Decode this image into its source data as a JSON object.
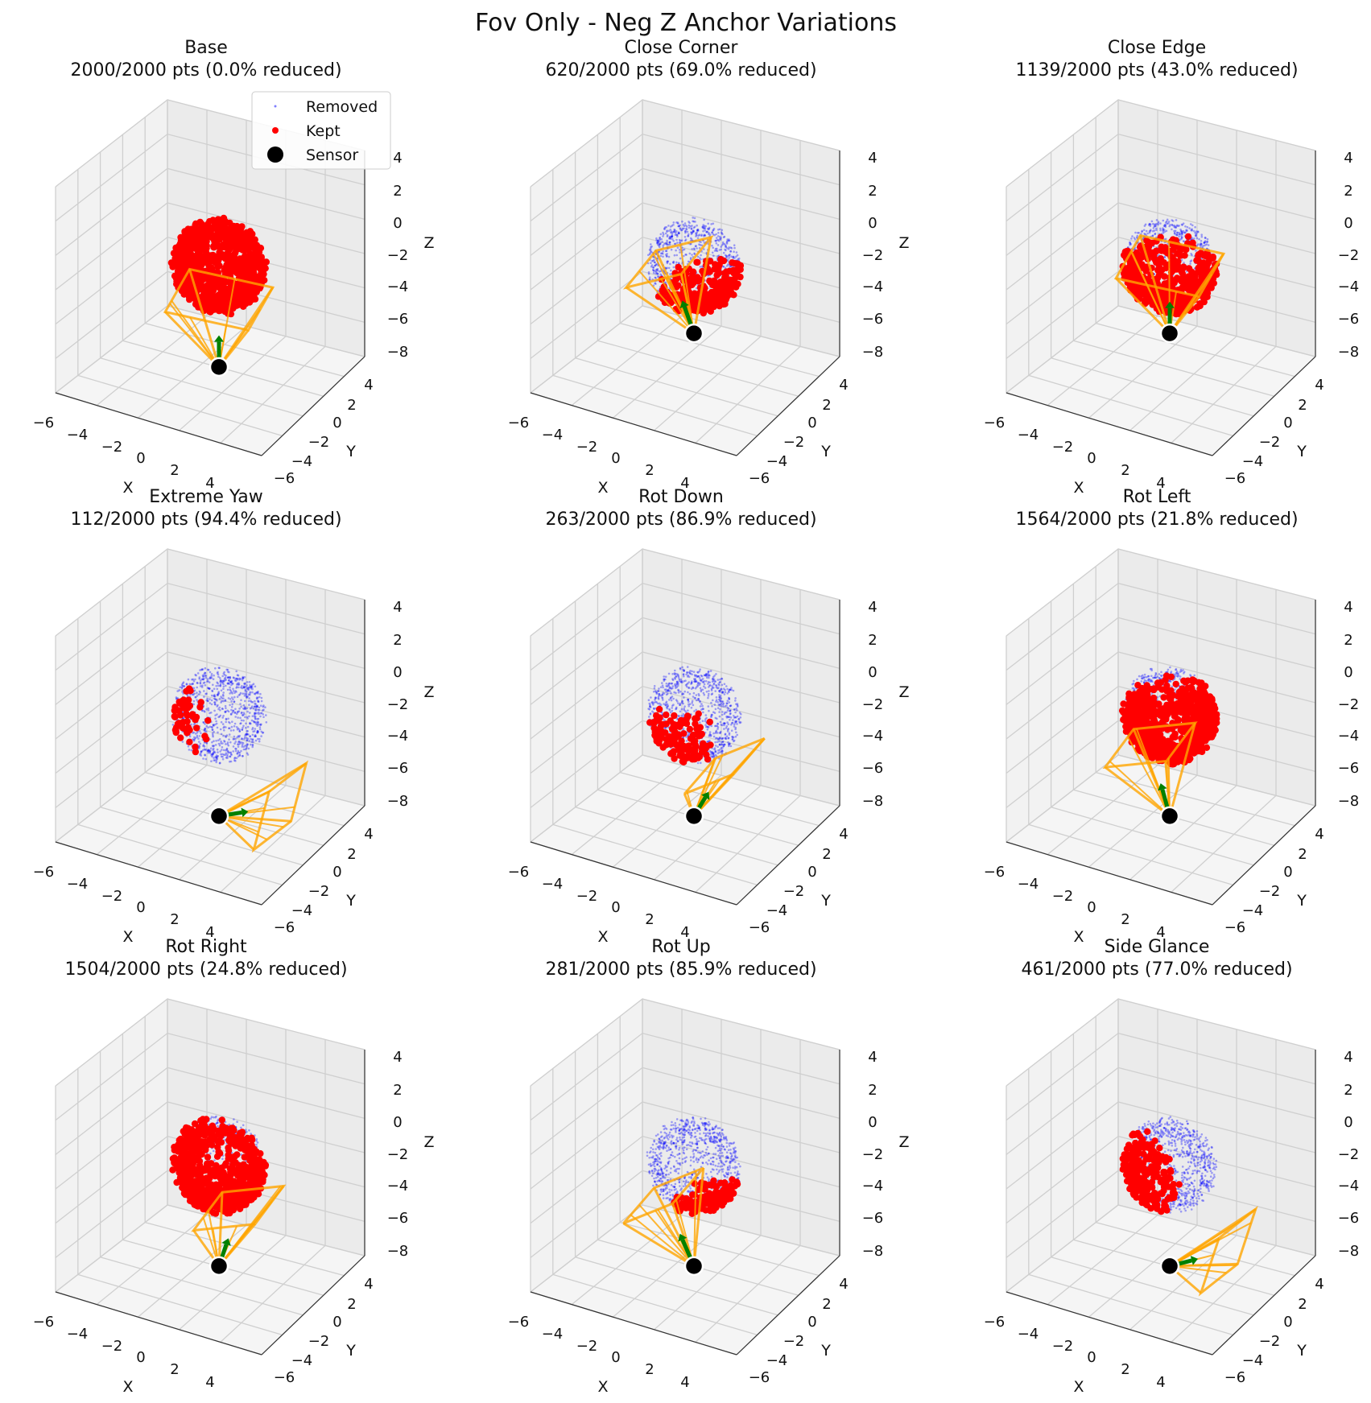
{
  "figure": {
    "title": "Fov Only - Neg Z Anchor Variations"
  },
  "legend": {
    "removed": "Removed",
    "kept": "Kept",
    "sensor": "Sensor"
  },
  "axes": {
    "xlabel": "X",
    "ylabel": "Y",
    "zlabel": "Z",
    "xticks": [
      "−6",
      "−4",
      "−2",
      "0",
      "2",
      "4"
    ],
    "yticks": [
      "−6",
      "−4",
      "−2",
      "0",
      "2",
      "4"
    ],
    "zticks": [
      "−8",
      "−6",
      "−4",
      "−2",
      "0",
      "2",
      "4"
    ]
  },
  "colors": {
    "removed": "#0000ff",
    "kept": "#ff0000",
    "sensor": "#000000",
    "fov": "#ffa500",
    "direction": "#008000"
  },
  "chart_data": [
    {
      "type": "scatter",
      "title": "Base",
      "subtitle": "2000/2000 pts (0.0% reduced)",
      "kept": 2000,
      "total": 2000,
      "reduced_pct": 0.0,
      "sensor": [
        0,
        0,
        -6
      ],
      "view_direction": [
        0,
        0,
        1
      ],
      "legend": "top-right",
      "xlim": [
        -6,
        5
      ],
      "ylim": [
        -6,
        5
      ],
      "zlim": [
        -8,
        4
      ]
    },
    {
      "type": "scatter",
      "title": "Close Corner",
      "subtitle": "620/2000 pts (69.0% reduced)",
      "kept": 620,
      "total": 2000,
      "reduced_pct": 69.0,
      "sensor": [
        0,
        0,
        -4
      ],
      "view_direction": [
        -0.4,
        0,
        1
      ],
      "xlim": [
        -6,
        5
      ],
      "ylim": [
        -6,
        5
      ],
      "zlim": [
        -8,
        4
      ]
    },
    {
      "type": "scatter",
      "title": "Close Edge",
      "subtitle": "1139/2000 pts (43.0% reduced)",
      "kept": 1139,
      "total": 2000,
      "reduced_pct": 43.0,
      "sensor": [
        0,
        0,
        -4
      ],
      "view_direction": [
        0,
        0,
        1
      ],
      "xlim": [
        -6,
        5
      ],
      "ylim": [
        -6,
        5
      ],
      "zlim": [
        -8,
        4
      ]
    },
    {
      "type": "scatter",
      "title": "Extreme Yaw",
      "subtitle": "112/2000 pts (94.4% reduced)",
      "kept": 112,
      "total": 2000,
      "reduced_pct": 94.4,
      "sensor": [
        0,
        0,
        -6
      ],
      "view_direction": [
        1,
        0,
        0.5
      ],
      "xlim": [
        -6,
        5
      ],
      "ylim": [
        -6,
        5
      ],
      "zlim": [
        -8,
        4
      ]
    },
    {
      "type": "scatter",
      "title": "Rot Down",
      "subtitle": "263/2000 pts (86.9% reduced)",
      "kept": 263,
      "total": 2000,
      "reduced_pct": 86.9,
      "sensor": [
        0,
        0,
        -6
      ],
      "view_direction": [
        0.5,
        0,
        1
      ],
      "xlim": [
        -6,
        5
      ],
      "ylim": [
        -6,
        5
      ],
      "zlim": [
        -8,
        4
      ]
    },
    {
      "type": "scatter",
      "title": "Rot Left",
      "subtitle": "1564/2000 pts (21.8% reduced)",
      "kept": 1564,
      "total": 2000,
      "reduced_pct": 21.8,
      "sensor": [
        0,
        0,
        -6
      ],
      "view_direction": [
        -0.3,
        0,
        1
      ],
      "xlim": [
        -6,
        5
      ],
      "ylim": [
        -6,
        5
      ],
      "zlim": [
        -8,
        4
      ]
    },
    {
      "type": "scatter",
      "title": "Rot Right",
      "subtitle": "1504/2000 pts (24.8% reduced)",
      "kept": 1504,
      "total": 2000,
      "reduced_pct": 24.8,
      "sensor": [
        0,
        0,
        -6
      ],
      "view_direction": [
        0.3,
        0,
        1
      ],
      "xlim": [
        -6,
        5
      ],
      "ylim": [
        -6,
        5
      ],
      "zlim": [
        -8,
        4
      ]
    },
    {
      "type": "scatter",
      "title": "Rot Up",
      "subtitle": "281/2000 pts (85.9% reduced)",
      "kept": 281,
      "total": 2000,
      "reduced_pct": 85.9,
      "sensor": [
        0,
        0,
        -6
      ],
      "view_direction": [
        -0.5,
        0,
        1
      ],
      "xlim": [
        -6,
        5
      ],
      "ylim": [
        -6,
        5
      ],
      "zlim": [
        -8,
        4
      ]
    },
    {
      "type": "scatter",
      "title": "Side Glance",
      "subtitle": "461/2000 pts (77.0% reduced)",
      "kept": 461,
      "total": 2000,
      "reduced_pct": 77.0,
      "sensor": [
        0,
        0,
        -6
      ],
      "view_direction": [
        1,
        0,
        0.6
      ],
      "xlim": [
        -6,
        5
      ],
      "ylim": [
        -6,
        5
      ],
      "zlim": [
        -8,
        4
      ]
    }
  ]
}
